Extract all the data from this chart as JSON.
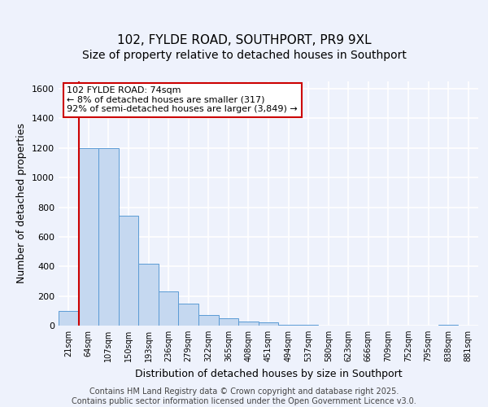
{
  "title1": "102, FYLDE ROAD, SOUTHPORT, PR9 9XL",
  "title2": "Size of property relative to detached houses in Southport",
  "xlabel": "Distribution of detached houses by size in Southport",
  "ylabel": "Number of detached properties",
  "categories": [
    "21sqm",
    "64sqm",
    "107sqm",
    "150sqm",
    "193sqm",
    "236sqm",
    "279sqm",
    "322sqm",
    "365sqm",
    "408sqm",
    "451sqm",
    "494sqm",
    "537sqm",
    "580sqm",
    "623sqm",
    "666sqm",
    "709sqm",
    "752sqm",
    "795sqm",
    "838sqm",
    "881sqm"
  ],
  "values": [
    100,
    1200,
    1200,
    740,
    420,
    230,
    150,
    70,
    50,
    30,
    20,
    5,
    5,
    0,
    0,
    0,
    0,
    0,
    0,
    5,
    0
  ],
  "bar_fill_color": "#c5d8f0",
  "bar_edge_color": "#5b9bd5",
  "highlight_line_color": "#cc0000",
  "highlight_bar_index": 1,
  "ylim": [
    0,
    1650
  ],
  "yticks": [
    0,
    200,
    400,
    600,
    800,
    1000,
    1200,
    1400,
    1600
  ],
  "annotation_text": "102 FYLDE ROAD: 74sqm\n← 8% of detached houses are smaller (317)\n92% of semi-detached houses are larger (3,849) →",
  "annotation_box_color": "#ffffff",
  "annotation_border_color": "#cc0000",
  "bg_color": "#eef2fc",
  "plot_bg_color": "#eef2fc",
  "grid_color": "#ffffff",
  "footer_text": "Contains HM Land Registry data © Crown copyright and database right 2025.\nContains public sector information licensed under the Open Government Licence v3.0.",
  "title_fontsize": 11,
  "subtitle_fontsize": 10,
  "axis_label_fontsize": 9,
  "tick_fontsize": 8,
  "footer_fontsize": 7
}
